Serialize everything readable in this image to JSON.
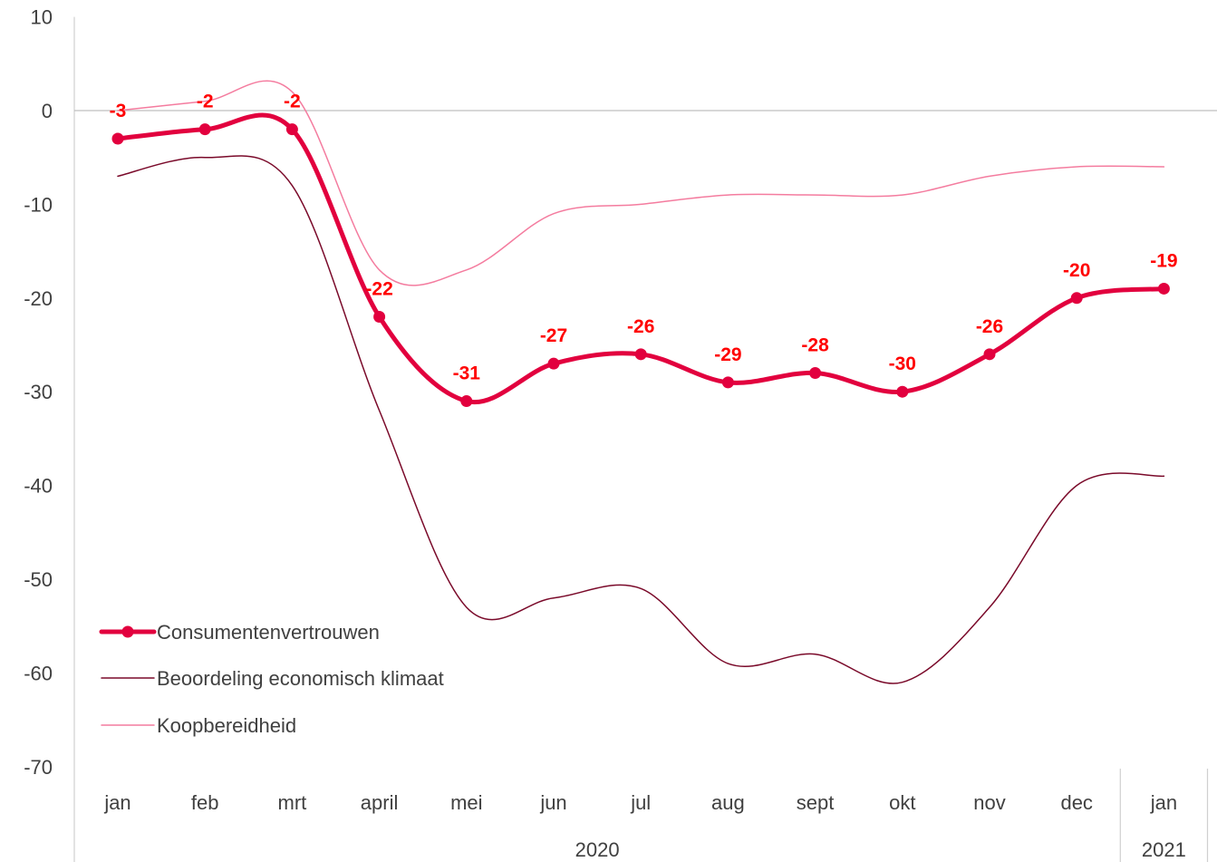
{
  "chart_data": {
    "type": "line",
    "categories": [
      "jan",
      "feb",
      "mrt",
      "april",
      "mei",
      "jun",
      "jul",
      "aug",
      "sept",
      "okt",
      "nov",
      "dec",
      "jan"
    ],
    "year_groups": [
      {
        "label": "2020",
        "span": 12
      },
      {
        "label": "2021",
        "span": 1
      }
    ],
    "ylim": [
      -70,
      10
    ],
    "yticks": [
      10,
      0,
      -10,
      -20,
      -30,
      -40,
      -50,
      -60,
      -70
    ],
    "series": [
      {
        "name": "Consumentenvertrouwen",
        "values": [
          -3,
          -2,
          -2,
          -22,
          -31,
          -27,
          -26,
          -29,
          -28,
          -30,
          -26,
          -20,
          -19
        ],
        "color": "#e2003e",
        "data_labels": true
      },
      {
        "name": "Beoordeling economisch klimaat",
        "values": [
          -7,
          -5,
          -8,
          -32,
          -53,
          -52,
          -51,
          -59,
          -58,
          -61,
          -53,
          -40,
          -39
        ],
        "color": "#7a0a2a",
        "data_labels": false
      },
      {
        "name": "Koopbereidheid",
        "values": [
          0,
          1,
          2,
          -17,
          -17,
          -11,
          -10,
          -9,
          -9,
          -9,
          -7,
          -6,
          -6
        ],
        "color": "#f47c9f",
        "data_labels": false
      }
    ],
    "data_label_color": "#ff0000",
    "legend_position": "bottom-left",
    "grid": false
  }
}
